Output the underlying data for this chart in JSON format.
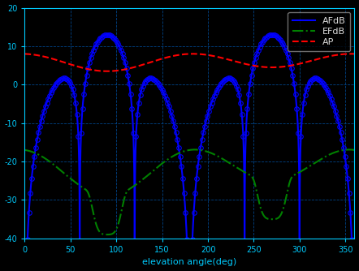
{
  "title": "",
  "xlabel": "elevation angle(deg)",
  "ylabel": "",
  "xlim": [
    0,
    360
  ],
  "ylim": [
    -40,
    20
  ],
  "yticks": [
    20,
    10,
    0,
    -10,
    -20,
    -30,
    -40
  ],
  "xticks": [
    0,
    50,
    100,
    150,
    200,
    250,
    300,
    350
  ],
  "xtick_labels": [
    "0",
    "50",
    "100",
    "150",
    "200",
    "250",
    "300",
    "350"
  ],
  "ytick_labels": [
    "20",
    "10",
    "0",
    "-10",
    "-20",
    "-30",
    "-40"
  ],
  "legend_labels": [
    "AFdB",
    "EFdB",
    "AP"
  ],
  "line_colors": [
    "#0000ff",
    "#008000",
    "#ff0000"
  ],
  "line_styles": [
    "-",
    "-.",
    "--"
  ],
  "markersize": 4,
  "N": 4,
  "d": 0.5,
  "AF_peak_dB": 13.0,
  "EF_base": -22.0,
  "AP_flat": 6.0,
  "figsize": [
    4.42,
    3.34
  ],
  "dpi": 100
}
